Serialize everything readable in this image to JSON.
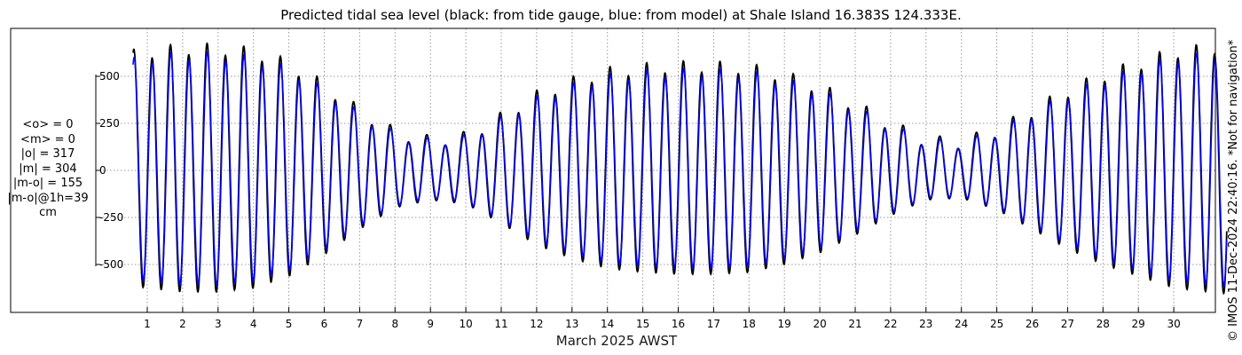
{
  "title": "Predicted tidal sea level (black: from tide gauge, blue: from model) at Shale Island 16.383S 124.333E.",
  "xlabel": "March 2025 AWST",
  "credit": "© IMOS 11-Dec-2024 22:40:16. *Not for navigation*",
  "stats": {
    "mean_obs": "<o> = 0",
    "mean_model": "<m> = 0",
    "abs_obs": "|o| = 317",
    "abs_model": "|m| = 304",
    "abs_diff": "|m-o| = 155",
    "abs_diff_1h": "|m-o|@1h=39",
    "unit": "cm"
  },
  "colors": {
    "gauge": "#000000",
    "model": "#0000ff",
    "grid": "#9a9a9a",
    "axis": "#000000"
  },
  "chart_data": {
    "type": "line",
    "title": "Predicted tidal sea level (black: from tide gauge, blue: from model) at Shale Island 16.383S 124.333E.",
    "xlabel": "March 2025 AWST",
    "ylabel": "",
    "unit": "cm",
    "x_range_days": [
      0.6,
      31.5
    ],
    "ylim": [
      -750,
      750
    ],
    "x_ticks": [
      1,
      2,
      3,
      4,
      5,
      6,
      7,
      8,
      9,
      10,
      11,
      12,
      13,
      14,
      15,
      16,
      17,
      18,
      19,
      20,
      21,
      22,
      23,
      24,
      25,
      26,
      27,
      28,
      29,
      30
    ],
    "y_ticks": [
      {
        "value": 500,
        "label": "500"
      },
      {
        "value": 250,
        "label": "250"
      },
      {
        "value": 0,
        "label": "0"
      },
      {
        "value": -250,
        "label": "-250"
      },
      {
        "value": -500,
        "label": "-500"
      }
    ],
    "grid": true,
    "series": [
      {
        "name": "from tide gauge",
        "color": "#000000",
        "approx_tidal_range_cm": [
          -620,
          640
        ]
      },
      {
        "name": "from model",
        "color": "#0000ff",
        "approx_tidal_range_cm": [
          -590,
          600
        ]
      }
    ],
    "envelope_days": [
      0.6,
      1,
      2,
      3,
      4,
      5,
      6,
      7,
      8,
      9,
      10,
      11,
      12,
      13,
      14,
      15,
      16,
      17,
      18,
      19,
      20,
      21,
      22,
      23,
      24,
      25,
      26,
      27,
      28,
      29,
      30,
      31.5
    ],
    "envelope_amplitude_cm": [
      590,
      600,
      620,
      620,
      600,
      540,
      430,
      300,
      190,
      150,
      170,
      270,
      380,
      450,
      500,
      520,
      530,
      530,
      520,
      480,
      420,
      330,
      230,
      150,
      140,
      200,
      300,
      400,
      480,
      540,
      600,
      630
    ]
  }
}
